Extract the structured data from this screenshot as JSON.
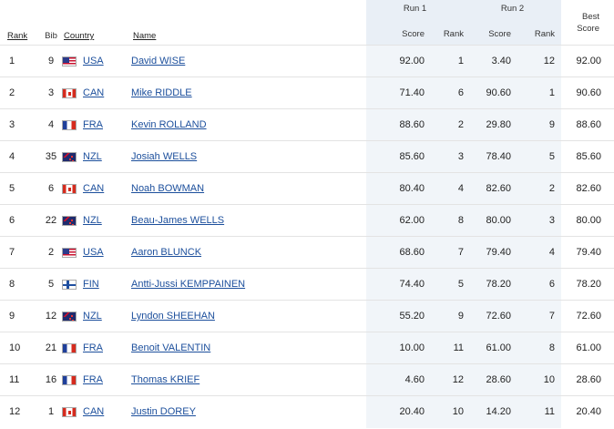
{
  "headers": {
    "rank": "Rank",
    "bib": "Bib",
    "country": "Country",
    "name": "Name",
    "run1": "Run 1",
    "run2": "Run 2",
    "score": "Score",
    "run_rank": "Rank",
    "best_line1": "Best",
    "best_line2": "Score"
  },
  "rows": [
    {
      "rank": "1",
      "bib": "9",
      "flag": "usa",
      "country": "USA",
      "name": "David WISE",
      "r1_score": "92.00",
      "r1_rank": "1",
      "r2_score": "3.40",
      "r2_rank": "12",
      "best": "92.00"
    },
    {
      "rank": "2",
      "bib": "3",
      "flag": "can",
      "country": "CAN",
      "name": "Mike RIDDLE",
      "r1_score": "71.40",
      "r1_rank": "6",
      "r2_score": "90.60",
      "r2_rank": "1",
      "best": "90.60"
    },
    {
      "rank": "3",
      "bib": "4",
      "flag": "fra",
      "country": "FRA",
      "name": "Kevin ROLLAND",
      "r1_score": "88.60",
      "r1_rank": "2",
      "r2_score": "29.80",
      "r2_rank": "9",
      "best": "88.60"
    },
    {
      "rank": "4",
      "bib": "35",
      "flag": "nzl",
      "country": "NZL",
      "name": "Josiah WELLS",
      "r1_score": "85.60",
      "r1_rank": "3",
      "r2_score": "78.40",
      "r2_rank": "5",
      "best": "85.60"
    },
    {
      "rank": "5",
      "bib": "6",
      "flag": "can",
      "country": "CAN",
      "name": "Noah BOWMAN",
      "r1_score": "80.40",
      "r1_rank": "4",
      "r2_score": "82.60",
      "r2_rank": "2",
      "best": "82.60"
    },
    {
      "rank": "6",
      "bib": "22",
      "flag": "nzl",
      "country": "NZL",
      "name": "Beau-James WELLS",
      "r1_score": "62.00",
      "r1_rank": "8",
      "r2_score": "80.00",
      "r2_rank": "3",
      "best": "80.00"
    },
    {
      "rank": "7",
      "bib": "2",
      "flag": "usa",
      "country": "USA",
      "name": "Aaron BLUNCK",
      "r1_score": "68.60",
      "r1_rank": "7",
      "r2_score": "79.40",
      "r2_rank": "4",
      "best": "79.40"
    },
    {
      "rank": "8",
      "bib": "5",
      "flag": "fin",
      "country": "FIN",
      "name": "Antti-Jussi KEMPPAINEN",
      "r1_score": "74.40",
      "r1_rank": "5",
      "r2_score": "78.20",
      "r2_rank": "6",
      "best": "78.20"
    },
    {
      "rank": "9",
      "bib": "12",
      "flag": "nzl",
      "country": "NZL",
      "name": "Lyndon SHEEHAN",
      "r1_score": "55.20",
      "r1_rank": "9",
      "r2_score": "72.60",
      "r2_rank": "7",
      "best": "72.60"
    },
    {
      "rank": "10",
      "bib": "21",
      "flag": "fra",
      "country": "FRA",
      "name": "Benoit VALENTIN",
      "r1_score": "10.00",
      "r1_rank": "11",
      "r2_score": "61.00",
      "r2_rank": "8",
      "best": "61.00"
    },
    {
      "rank": "11",
      "bib": "16",
      "flag": "fra",
      "country": "FRA",
      "name": "Thomas KRIEF",
      "r1_score": "4.60",
      "r1_rank": "12",
      "r2_score": "28.60",
      "r2_rank": "10",
      "best": "28.60"
    },
    {
      "rank": "12",
      "bib": "1",
      "flag": "can",
      "country": "CAN",
      "name": "Justin DOREY",
      "r1_score": "20.40",
      "r1_rank": "10",
      "r2_score": "14.20",
      "r2_rank": "11",
      "best": "20.40"
    }
  ]
}
